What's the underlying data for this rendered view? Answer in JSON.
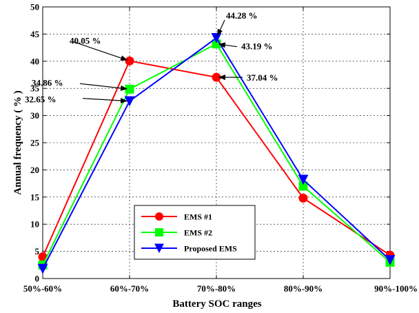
{
  "chart_data": {
    "type": "line",
    "categories": [
      "50%-60%",
      "60%-70%",
      "70%-80%",
      "80%-90%",
      "90%-100%"
    ],
    "xlabel": "Battery SOC ranges",
    "ylabel": "Annual frequency ( % )",
    "ylim": [
      0,
      50
    ],
    "yticks": [
      0,
      5,
      10,
      15,
      20,
      25,
      30,
      35,
      40,
      45,
      50
    ],
    "grid": true,
    "legend_position": "bottom-center",
    "series": [
      {
        "name": "EMS #1",
        "color": "#ff0000",
        "marker": "circle",
        "values": [
          4.0,
          40.05,
          37.04,
          14.8,
          4.3
        ]
      },
      {
        "name": "EMS #2",
        "color": "#00ff00",
        "marker": "square",
        "values": [
          2.5,
          34.86,
          43.19,
          17.0,
          3.0
        ]
      },
      {
        "name": "Proposed EMS",
        "color": "#0000ff",
        "marker": "triangle-down",
        "values": [
          1.8,
          32.65,
          44.28,
          18.2,
          3.4
        ]
      }
    ],
    "annotations": [
      {
        "text": "40.05 %",
        "category": "60%-70%",
        "value": 40.05
      },
      {
        "text": "34.86 %",
        "category": "60%-70%",
        "value": 34.86
      },
      {
        "text": "32.65 %",
        "category": "60%-70%",
        "value": 32.65
      },
      {
        "text": "44.28 %",
        "category": "70%-80%",
        "value": 44.28
      },
      {
        "text": "43.19 %",
        "category": "70%-80%",
        "value": 43.19
      },
      {
        "text": "37.04 %",
        "category": "70%-80%",
        "value": 37.04
      }
    ]
  }
}
